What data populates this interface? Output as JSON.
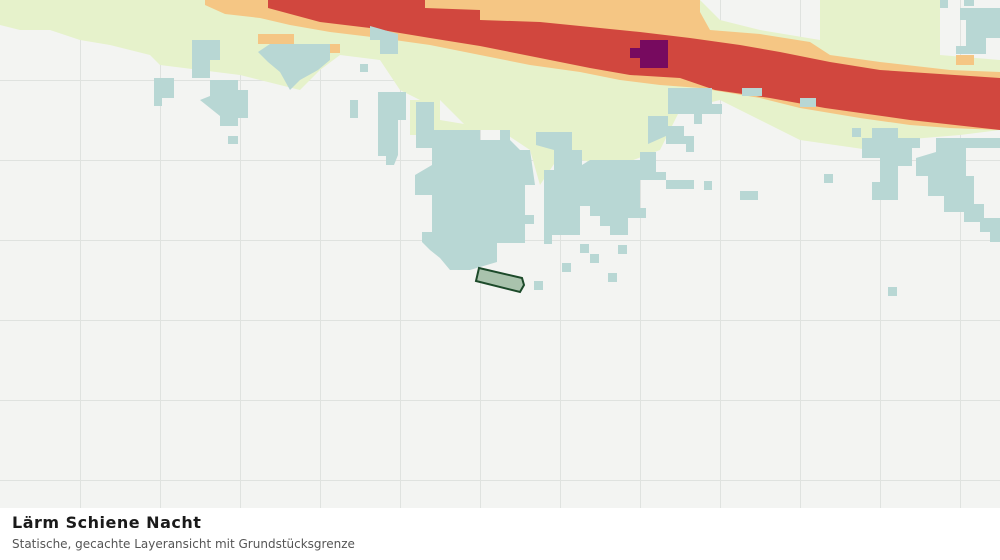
{
  "caption": {
    "title": "Lärm Schiene Nacht",
    "subtitle": "Statische, gecachte Layeransicht mit Grundstücksgrenze"
  }
}
